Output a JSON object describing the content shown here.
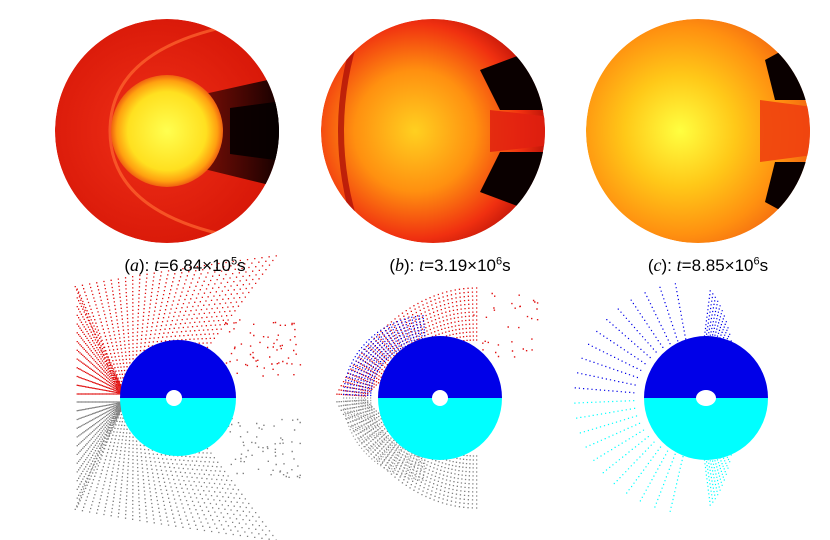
{
  "panels": [
    {
      "letter": "a",
      "t_mantissa": "6.84",
      "t_exponent": "5",
      "unit": "s"
    },
    {
      "letter": "b",
      "t_mantissa": "3.19",
      "t_exponent": "6",
      "unit": "s"
    },
    {
      "letter": "c",
      "t_mantissa": "8.85",
      "t_exponent": "6",
      "unit": "s"
    }
  ],
  "colors": {
    "density_core": "#ffff30",
    "density_mid": "#ff8a10",
    "density_outer": "#e82010",
    "density_void": "#100000",
    "particles_stripped_upper": "#e01010",
    "particles_stripped_lower": "#808080",
    "particles_bound_upper": "#0000e8",
    "particles_bound_lower": "#00ffff"
  }
}
